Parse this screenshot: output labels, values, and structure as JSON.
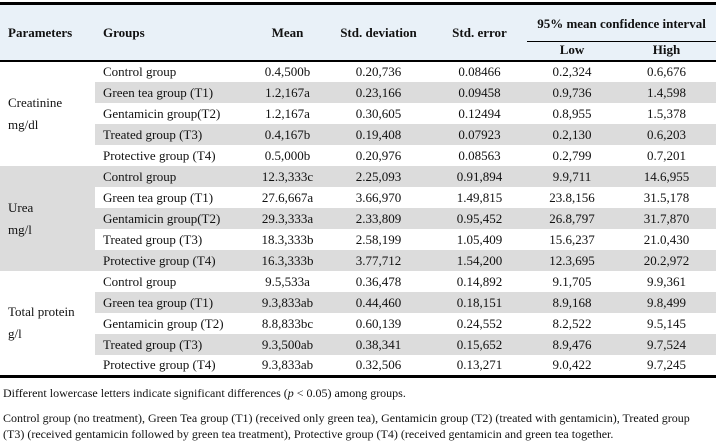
{
  "table": {
    "headers": {
      "parameters": "Parameters",
      "groups": "Groups",
      "mean": "Mean",
      "std_deviation": "Std. deviation",
      "std_error": "Std. error",
      "ci": "95% mean confidence interval",
      "low": "Low",
      "high": "High"
    },
    "sections": [
      {
        "parameter": "Creatinine",
        "unit": "mg/dl",
        "shaded": false,
        "rows": [
          {
            "group": "Control group",
            "mean": "0.4,500b",
            "std_dev": "0.20,736",
            "std_err": "0.08466",
            "low": "0.2,324",
            "high": "0.6,676"
          },
          {
            "group": "Green tea group (T1)",
            "mean": "1.2,167a",
            "std_dev": "0.23,166",
            "std_err": "0.09458",
            "low": "0.9,736",
            "high": "1.4,598"
          },
          {
            "group": "Gentamicin group(T2)",
            "mean": "1.2,167a",
            "std_dev": "0.30,605",
            "std_err": "0.12494",
            "low": "0.8,955",
            "high": "1.5,378"
          },
          {
            "group": "Treated group (T3)",
            "mean": "0.4,167b",
            "std_dev": "0.19,408",
            "std_err": "0.07923",
            "low": "0.2,130",
            "high": "0.6,203"
          },
          {
            "group": "Protective group (T4)",
            "mean": "0.5,000b",
            "std_dev": "0.20,976",
            "std_err": "0.08563",
            "low": "0.2,799",
            "high": "0.7,201"
          }
        ]
      },
      {
        "parameter": "Urea",
        "unit": "mg/l",
        "shaded": true,
        "rows": [
          {
            "group": "Control group",
            "mean": "12.3,333c",
            "std_dev": "2.25,093",
            "std_err": "0.91,894",
            "low": "9.9,711",
            "high": "14.6,955"
          },
          {
            "group": "Green tea group (T1)",
            "mean": "27.6,667a",
            "std_dev": "3.66,970",
            "std_err": "1.49,815",
            "low": "23.8,156",
            "high": "31.5,178"
          },
          {
            "group": "Gentamicin group(T2)",
            "mean": "29.3,333a",
            "std_dev": "2.33,809",
            "std_err": "0.95,452",
            "low": "26.8,797",
            "high": "31.7,870"
          },
          {
            "group": "Treated group (T3)",
            "mean": "18.3,333b",
            "std_dev": "2.58,199",
            "std_err": "1.05,409",
            "low": "15.6,237",
            "high": "21.0,430"
          },
          {
            "group": "Protective group (T4)",
            "mean": "16.3,333b",
            "std_dev": "3.77,712",
            "std_err": "1.54,200",
            "low": "12.3,695",
            "high": "20.2,972"
          }
        ]
      },
      {
        "parameter": "Total protein",
        "unit": "g/l",
        "shaded": false,
        "rows": [
          {
            "group": "Control group",
            "mean": "9.5,533a",
            "std_dev": "0.36,478",
            "std_err": "0.14,892",
            "low": "9.1,705",
            "high": "9.9,361"
          },
          {
            "group": "Green tea group (T1)",
            "mean": "9.3,833ab",
            "std_dev": "0.44,460",
            "std_err": "0.18,151",
            "low": "8.9,168",
            "high": "9.8,499"
          },
          {
            "group": "Gentamicin group (T2)",
            "mean": "8.8,833bc",
            "std_dev": "0.60,139",
            "std_err": "0.24,552",
            "low": "8.2,522",
            "high": "9.5,145"
          },
          {
            "group": "Treated group (T3)",
            "mean": "9.3,500ab",
            "std_dev": "0.38,341",
            "std_err": "0.15,652",
            "low": "8.9,476",
            "high": "9.7,524"
          },
          {
            "group": "Protective group (T4)",
            "mean": "9.3,833ab",
            "std_dev": "0.32,506",
            "std_err": "0.13,271",
            "low": "9.0,422",
            "high": "9.7,245"
          }
        ]
      }
    ]
  },
  "footnotes": {
    "note1_prefix": "Different lowercase letters indicate significant differences (",
    "note1_italic": "p",
    "note1_suffix": " < 0.05) among groups.",
    "note2": "Control group (no treatment), Green Tea group (T1) (received only green tea), Gentamicin group (T2) (treated with gentamicin), Treated group (T3) (received gentamicin followed by green tea treatment), Protective group (T4) (received gentamicin and green tea together."
  },
  "colors": {
    "header_bg": "#e9f1f8",
    "band_bg": "#dcdcdc",
    "rule": "#000000"
  }
}
